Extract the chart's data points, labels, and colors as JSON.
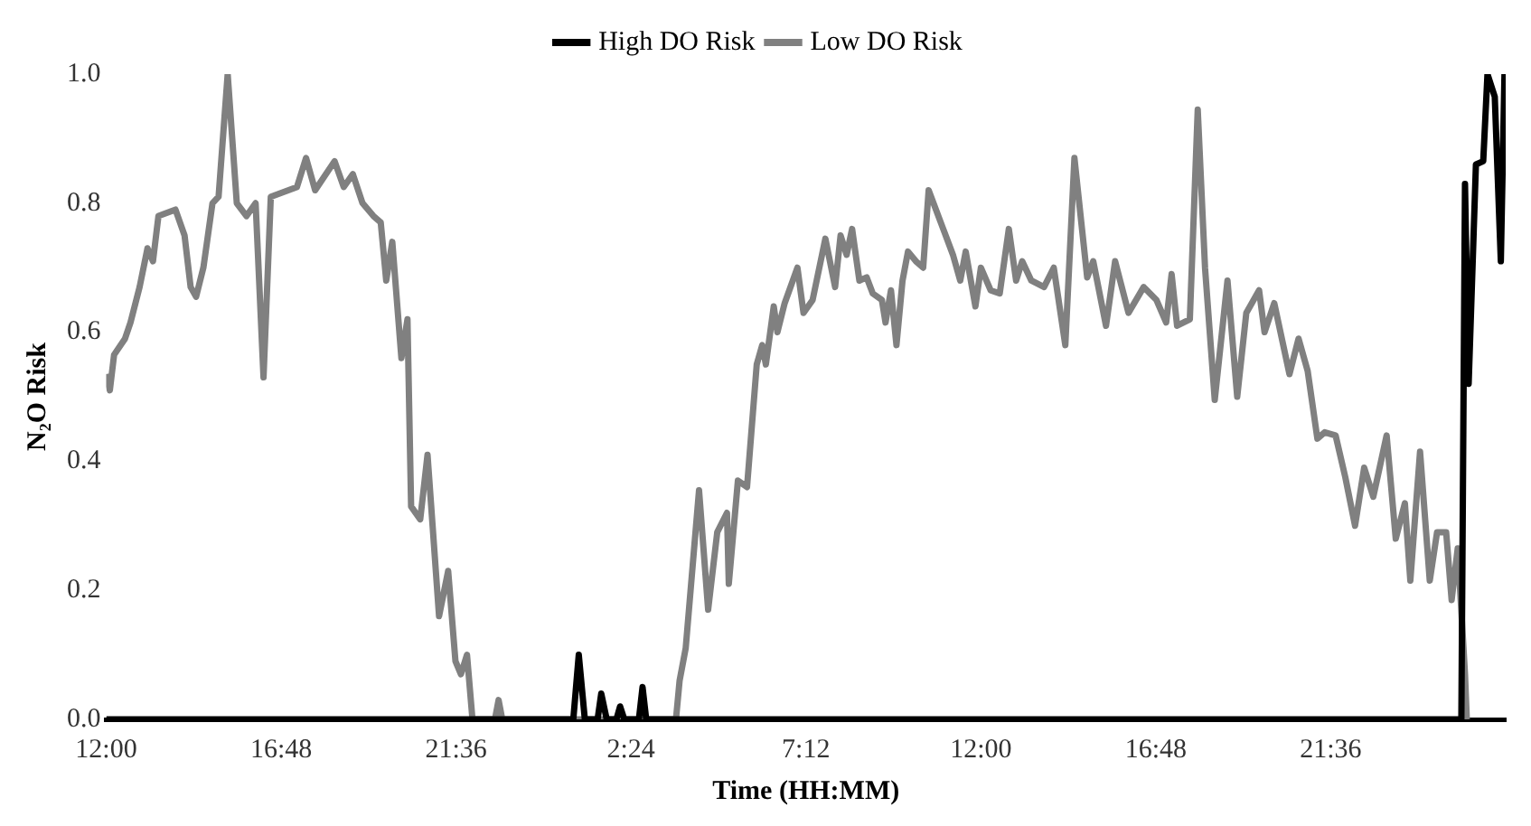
{
  "chart_data": {
    "type": "line",
    "xlabel": "Time (HH:MM)",
    "ylabel": "N₂O Risk",
    "xlim": [
      "--01-01T12:00",
      "--01-03T02:24"
    ],
    "ylim": [
      0,
      1
    ],
    "xticks": [
      {
        "value": "--01-01T12:00",
        "label": "12:00"
      },
      {
        "value": "--01-01T16:48",
        "label": "16:48"
      },
      {
        "value": "--01-01T21:36",
        "label": "21:36"
      },
      {
        "value": "--01-02T02:24",
        "label": "2:24"
      },
      {
        "value": "--01-02T07:12",
        "label": "7:12"
      },
      {
        "value": "--01-02T12:00",
        "label": "12:00"
      },
      {
        "value": "--01-02T16:48",
        "label": "16:48"
      },
      {
        "value": "--01-02T21:36",
        "label": "21:36"
      }
    ],
    "yticks": [
      {
        "value": 0,
        "label": "0.0"
      },
      {
        "value": 0.2,
        "label": "0.2"
      },
      {
        "value": 0.4,
        "label": "0.4"
      },
      {
        "value": 0.6,
        "label": "0.6"
      },
      {
        "value": 0.8,
        "label": "0.8"
      },
      {
        "value": 1,
        "label": "1.0"
      }
    ],
    "grid": false,
    "legend": "top",
    "marker": "none",
    "line_style": "solid",
    "series": [
      {
        "name": "High DO Risk",
        "color": "#000000",
        "x": [
          "--01-01T12:00",
          "--01-02T00:49",
          "--01-02T00:58",
          "--01-02T01:08",
          "--01-02T01:29",
          "--01-02T01:35",
          "--01-02T01:44",
          "--01-02T02:00",
          "--01-02T02:06",
          "--01-02T02:13",
          "--01-02T02:37",
          "--01-02T02:43",
          "--01-02T02:49",
          "--01-03T01:11",
          "--01-03T01:17",
          "--01-03T01:23",
          "--01-03T01:35",
          "--01-03T01:47",
          "--01-03T01:54",
          "--01-03T02:06",
          "--01-03T02:16",
          "--01-03T02:22",
          "--01-03T02:24"
        ],
        "values": [
          0,
          0,
          0.1,
          0,
          0,
          0.04,
          0,
          0,
          0.02,
          0,
          0,
          0.05,
          0,
          0,
          0.83,
          0.52,
          0.86,
          0.865,
          1,
          0.965,
          0.71,
          1,
          1
        ]
      },
      {
        "name": "Low DO Risk",
        "color": "#808080",
        "x": [
          "--01-01T12:00",
          "--01-01T12:06",
          "--01-01T12:13",
          "--01-01T12:31",
          "--01-01T12:40",
          "--01-01T12:55",
          "--01-01T13:08",
          "--01-01T13:17",
          "--01-01T13:26",
          "--01-01T13:54",
          "--01-01T14:09",
          "--01-01T14:19",
          "--01-01T14:28",
          "--01-01T14:40",
          "--01-01T14:55",
          "--01-01T15:05",
          "--01-01T15:20",
          "--01-01T15:35",
          "--01-01T15:51",
          "--01-01T16:06",
          "--01-01T16:19",
          "--01-01T16:31",
          "--01-01T17:14",
          "--01-01T17:29",
          "--01-01T17:44",
          "--01-01T18:16",
          "--01-01T18:31",
          "--01-01T18:46",
          "--01-01T19:02",
          "--01-01T19:20",
          "--01-01T19:32",
          "--01-01T19:41",
          "--01-01T19:51",
          "--01-01T20:06",
          "--01-01T20:16",
          "--01-01T20:22",
          "--01-01T20:37",
          "--01-01T20:49",
          "--01-01T21:08",
          "--01-01T21:23",
          "--01-01T21:35",
          "--01-01T21:44",
          "--01-01T21:54",
          "--01-01T22:03",
          "--01-01T22:40",
          "--01-01T22:46",
          "--01-01T22:52",
          "--01-02T03:38",
          "--01-02T03:44",
          "--01-02T03:54",
          "--01-02T04:16",
          "--01-02T04:31",
          "--01-02T04:46",
          "--01-02T05:02",
          "--01-02T05:05",
          "--01-02T05:20",
          "--01-02T05:35",
          "--01-02T05:51",
          "--01-02T06:00",
          "--01-02T06:06",
          "--01-02T06:19",
          "--01-02T06:25",
          "--01-02T06:37",
          "--01-02T06:58",
          "--01-02T07:08",
          "--01-02T07:23",
          "--01-02T07:44",
          "--01-02T08:00",
          "--01-02T08:09",
          "--01-02T08:19",
          "--01-02T08:28",
          "--01-02T08:40",
          "--01-02T08:52",
          "--01-02T09:02",
          "--01-02T09:17",
          "--01-02T09:23",
          "--01-02T09:32",
          "--01-02T09:41",
          "--01-02T09:51",
          "--01-02T10:00",
          "--01-02T10:13",
          "--01-02T10:25",
          "--01-02T10:34",
          "--01-02T10:58",
          "--01-02T11:14",
          "--01-02T11:26",
          "--01-02T11:35",
          "--01-02T11:51",
          "--01-02T12:00",
          "--01-02T12:16",
          "--01-02T12:31",
          "--01-02T12:46",
          "--01-02T12:58",
          "--01-02T13:08",
          "--01-02T13:23",
          "--01-02T13:44",
          "--01-02T14:00",
          "--01-02T14:19",
          "--01-02T14:34",
          "--01-02T14:55",
          "--01-02T15:05",
          "--01-02T15:26",
          "--01-02T15:41",
          "--01-02T16:03",
          "--01-02T16:28",
          "--01-02T16:49",
          "--01-02T17:05",
          "--01-02T17:14",
          "--01-02T17:23",
          "--01-02T17:44",
          "--01-02T17:57",
          "--01-02T18:09",
          "--01-02T18:25",
          "--01-02T18:46",
          "--01-02T19:02",
          "--01-02T19:17",
          "--01-02T19:38",
          "--01-02T19:47",
          "--01-02T20:03",
          "--01-02T20:28",
          "--01-02T20:43",
          "--01-02T20:58",
          "--01-02T21:14",
          "--01-02T21:26",
          "--01-02T21:44",
          "--01-02T22:00",
          "--01-02T22:16",
          "--01-02T22:31",
          "--01-02T22:46",
          "--01-02T23:08",
          "--01-02T23:23",
          "--01-02T23:38",
          "--01-02T23:47",
          "--01-03T00:03",
          "--01-03T00:19",
          "--01-03T00:31",
          "--01-03T00:46",
          "--01-03T00:55",
          "--01-03T01:05",
          "--01-03T01:17",
          "--01-03T01:20"
        ],
        "values": [
          0.535,
          0.51,
          0.565,
          0.59,
          0.615,
          0.67,
          0.73,
          0.71,
          0.78,
          0.79,
          0.75,
          0.67,
          0.655,
          0.7,
          0.8,
          0.81,
          1,
          0.8,
          0.78,
          0.8,
          0.53,
          0.81,
          0.825,
          0.87,
          0.82,
          0.865,
          0.825,
          0.845,
          0.8,
          0.78,
          0.77,
          0.68,
          0.74,
          0.56,
          0.62,
          0.33,
          0.31,
          0.41,
          0.16,
          0.23,
          0.09,
          0.07,
          0.1,
          0,
          0,
          0.03,
          0,
          0,
          0.06,
          0.11,
          0.355,
          0.17,
          0.29,
          0.32,
          0.21,
          0.37,
          0.36,
          0.55,
          0.58,
          0.55,
          0.64,
          0.6,
          0.645,
          0.7,
          0.63,
          0.65,
          0.745,
          0.67,
          0.75,
          0.72,
          0.76,
          0.68,
          0.685,
          0.66,
          0.65,
          0.615,
          0.665,
          0.58,
          0.68,
          0.725,
          0.71,
          0.7,
          0.82,
          0.76,
          0.72,
          0.68,
          0.725,
          0.64,
          0.7,
          0.665,
          0.66,
          0.76,
          0.68,
          0.71,
          0.68,
          0.67,
          0.7,
          0.58,
          0.87,
          0.685,
          0.71,
          0.61,
          0.71,
          0.63,
          0.67,
          0.65,
          0.615,
          0.69,
          0.61,
          0.62,
          0.945,
          0.7,
          0.495,
          0.68,
          0.5,
          0.63,
          0.665,
          0.6,
          0.645,
          0.535,
          0.59,
          0.54,
          0.435,
          0.445,
          0.44,
          0.375,
          0.3,
          0.39,
          0.345,
          0.44,
          0.28,
          0.335,
          0.215,
          0.415,
          0.215,
          0.29,
          0.29,
          0.185,
          0.265,
          0.07,
          0
        ]
      }
    ]
  }
}
